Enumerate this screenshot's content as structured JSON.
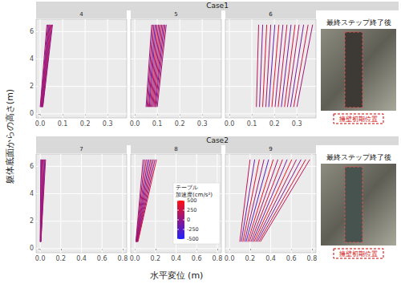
{
  "chart_data": {
    "type": "line",
    "x_label": "水平変位 (m)",
    "y_label": "躯体底面からの高さ(m)",
    "grid": true,
    "colorbar": {
      "title": [
        "テーブル",
        "加速度(cm/s²)"
      ],
      "range": [
        -500,
        500
      ],
      "ticks": [
        -500,
        -250,
        0,
        250,
        500
      ],
      "colors": [
        "#2020ff",
        "#ff1010"
      ]
    },
    "facets": [
      {
        "title": "Case1",
        "photo_caption": "最終ステップ終了後",
        "photo_legend": "擁壁初期位置",
        "xlim": [
          -0.018,
          0.385
        ],
        "xticks": [
          {
            "value": 0,
            "label": "0.0"
          },
          {
            "value": 0.1,
            "label": "0.1"
          },
          {
            "value": 0.2,
            "label": "0.2"
          },
          {
            "value": 0.3,
            "label": "0.3"
          }
        ],
        "ylim": [
          -0.3,
          6.9
        ],
        "yticks": [
          0,
          2,
          4,
          6
        ],
        "heights": [
          0.5,
          6.5
        ],
        "panels": [
          {
            "title": "4",
            "lines": [
              {
                "x": [
                  0.0,
                  0.03
                ],
                "accel": 100
              },
              {
                "x": [
                  0.002,
                  0.034
                ],
                "accel": -60
              },
              {
                "x": [
                  0.004,
                  0.037
                ],
                "accel": 220
              },
              {
                "x": [
                  0.005,
                  0.04
                ],
                "accel": 30
              },
              {
                "x": [
                  0.007,
                  0.043
                ],
                "accel": -150
              },
              {
                "x": [
                  0.008,
                  0.046
                ],
                "accel": 280
              },
              {
                "x": [
                  0.01,
                  0.049
                ],
                "accel": 60
              },
              {
                "x": [
                  0.011,
                  0.052
                ],
                "accel": 180
              },
              {
                "x": [
                  0.012,
                  0.055
                ],
                "accel": -20
              }
            ]
          },
          {
            "title": "5",
            "lines": [
              {
                "x": [
                  0.05,
                  0.075
                ],
                "accel": 150
              },
              {
                "x": [
                  0.054,
                  0.08
                ],
                "accel": -100
              },
              {
                "x": [
                  0.058,
                  0.085
                ],
                "accel": 260
              },
              {
                "x": [
                  0.062,
                  0.09
                ],
                "accel": 20
              },
              {
                "x": [
                  0.065,
                  0.095
                ],
                "accel": -200
              },
              {
                "x": [
                  0.069,
                  0.1
                ],
                "accel": 330
              },
              {
                "x": [
                  0.073,
                  0.105
                ],
                "accel": 80
              },
              {
                "x": [
                  0.077,
                  0.11
                ],
                "accel": 190
              },
              {
                "x": [
                  0.081,
                  0.115
                ],
                "accel": -60
              },
              {
                "x": [
                  0.085,
                  0.12
                ],
                "accel": 300
              },
              {
                "x": [
                  0.089,
                  0.125
                ],
                "accel": 120
              },
              {
                "x": [
                  0.092,
                  0.13
                ],
                "accel": -140
              },
              {
                "x": [
                  0.096,
                  0.135
                ],
                "accel": 240
              },
              {
                "x": [
                  0.1,
                  0.14
                ],
                "accel": 40
              }
            ]
          },
          {
            "title": "6",
            "lines": [
              {
                "x": [
                  0.12,
                  0.13
                ],
                "accel": 200
              },
              {
                "x": [
                  0.134,
                  0.148
                ],
                "accel": -50
              },
              {
                "x": [
                  0.148,
                  0.166
                ],
                "accel": 350
              },
              {
                "x": [
                  0.162,
                  0.184
                ],
                "accel": 90
              },
              {
                "x": [
                  0.175,
                  0.202
                ],
                "accel": -180
              },
              {
                "x": [
                  0.189,
                  0.22
                ],
                "accel": 400
              },
              {
                "x": [
                  0.203,
                  0.238
                ],
                "accel": 10
              },
              {
                "x": [
                  0.217,
                  0.256
                ],
                "accel": 260
              },
              {
                "x": [
                  0.231,
                  0.274
                ],
                "accel": -120
              },
              {
                "x": [
                  0.245,
                  0.292
                ],
                "accel": 320
              },
              {
                "x": [
                  0.258,
                  0.31
                ],
                "accel": 150
              },
              {
                "x": [
                  0.272,
                  0.33
                ],
                "accel": -90
              },
              {
                "x": [
                  0.286,
                  0.35
                ],
                "accel": 280
              },
              {
                "x": [
                  0.3,
                  0.37
                ],
                "accel": 60
              }
            ]
          }
        ]
      },
      {
        "title": "Case2",
        "photo_caption": "最終ステップ終了後",
        "photo_legend": "擁壁初期位置",
        "xlim": [
          -0.04,
          0.84
        ],
        "xticks": [
          {
            "value": 0,
            "label": "0.0"
          },
          {
            "value": 0.2,
            "label": "0.2"
          },
          {
            "value": 0.4,
            "label": "0.4"
          },
          {
            "value": 0.6,
            "label": "0.6"
          },
          {
            "value": 0.8,
            "label": "0.8"
          }
        ],
        "ylim": [
          -0.3,
          6.9
        ],
        "yticks": [
          0,
          2,
          4,
          6
        ],
        "heights": [
          0.5,
          6.5
        ],
        "panels": [
          {
            "title": "7",
            "lines": [
              {
                "x": [
                  0.0,
                  0.005
                ],
                "accel": 80
              },
              {
                "x": [
                  0.001,
                  0.012
                ],
                "accel": -120
              },
              {
                "x": [
                  0.002,
                  0.019
                ],
                "accel": 200
              },
              {
                "x": [
                  0.003,
                  0.026
                ],
                "accel": -30
              },
              {
                "x": [
                  0.004,
                  0.033
                ],
                "accel": 250
              },
              {
                "x": [
                  0.005,
                  0.04
                ],
                "accel": 40
              },
              {
                "x": [
                  0.006,
                  0.046
                ],
                "accel": -200
              },
              {
                "x": [
                  0.007,
                  0.052
                ],
                "accel": 150
              }
            ]
          },
          {
            "title": "8",
            "lines": [
              {
                "x": [
                  0.01,
                  0.08
                ],
                "accel": 180
              },
              {
                "x": [
                  0.012,
                  0.095
                ],
                "accel": -90
              },
              {
                "x": [
                  0.014,
                  0.11
                ],
                "accel": 300
              },
              {
                "x": [
                  0.016,
                  0.124
                ],
                "accel": 50
              },
              {
                "x": [
                  0.018,
                  0.138
                ],
                "accel": -160
              },
              {
                "x": [
                  0.02,
                  0.152
                ],
                "accel": 260
              },
              {
                "x": [
                  0.022,
                  0.166
                ],
                "accel": 0
              },
              {
                "x": [
                  0.025,
                  0.18
                ],
                "accel": 220
              },
              {
                "x": [
                  0.027,
                  0.195
                ],
                "accel": -60
              },
              {
                "x": [
                  0.03,
                  0.21
                ],
                "accel": 340
              }
            ]
          },
          {
            "title": "9",
            "lines": [
              {
                "x": [
                  0.1,
                  0.2
                ],
                "accel": 220
              },
              {
                "x": [
                  0.115,
                  0.245
                ],
                "accel": -150
              },
              {
                "x": [
                  0.13,
                  0.29
                ],
                "accel": 380
              },
              {
                "x": [
                  0.146,
                  0.335
                ],
                "accel": 60
              },
              {
                "x": [
                  0.161,
                  0.38
                ],
                "accel": -250
              },
              {
                "x": [
                  0.177,
                  0.425
                ],
                "accel": 420
              },
              {
                "x": [
                  0.192,
                  0.47
                ],
                "accel": 100
              },
              {
                "x": [
                  0.208,
                  0.515
                ],
                "accel": 300
              },
              {
                "x": [
                  0.223,
                  0.56
                ],
                "accel": -100
              },
              {
                "x": [
                  0.238,
                  0.605
                ],
                "accel": 450
              },
              {
                "x": [
                  0.254,
                  0.65
                ],
                "accel": 140
              },
              {
                "x": [
                  0.269,
                  0.695
                ],
                "accel": -60
              },
              {
                "x": [
                  0.285,
                  0.74
                ],
                "accel": 320
              },
              {
                "x": [
                  0.3,
                  0.78
                ],
                "accel": 200
              }
            ]
          }
        ]
      }
    ]
  }
}
